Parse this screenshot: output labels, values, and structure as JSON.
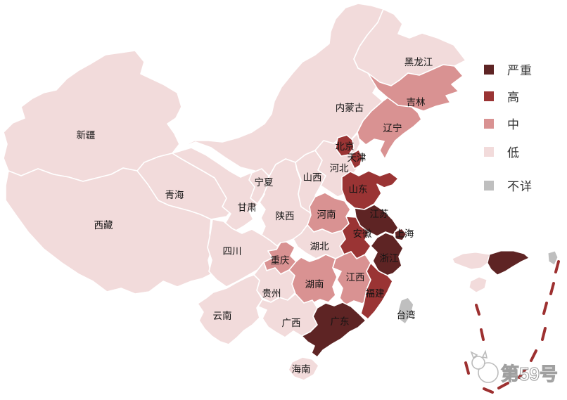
{
  "legend": {
    "items": [
      {
        "key": "severe",
        "label": "严重",
        "color": "#5e2424"
      },
      {
        "key": "high",
        "label": "高",
        "color": "#9a3434"
      },
      {
        "key": "mid",
        "label": "中",
        "color": "#d99292"
      },
      {
        "key": "low",
        "label": "低",
        "color": "#f2dbdb"
      },
      {
        "key": "unknown",
        "label": "不详",
        "color": "#bfbfbf"
      }
    ]
  },
  "map": {
    "provinces": [
      {
        "id": "xinjiang",
        "label": "新疆",
        "level": "low"
      },
      {
        "id": "xizang",
        "label": "西藏",
        "level": "low"
      },
      {
        "id": "qinghai",
        "label": "青海",
        "level": "low"
      },
      {
        "id": "neimenggu",
        "label": "内蒙古",
        "level": "low"
      },
      {
        "id": "gansu",
        "label": "甘肃",
        "level": "low"
      },
      {
        "id": "shaanxi",
        "label": "陕西",
        "level": "low"
      },
      {
        "id": "ningxia",
        "label": "宁夏",
        "level": "low"
      },
      {
        "id": "heilongjiang",
        "label": "黑龙江",
        "level": "low"
      },
      {
        "id": "jilin",
        "label": "吉林",
        "level": "mid"
      },
      {
        "id": "liaoning",
        "label": "辽宁",
        "level": "mid"
      },
      {
        "id": "shanxi",
        "label": "山西",
        "level": "low"
      },
      {
        "id": "hebei",
        "label": "河北",
        "level": "low"
      },
      {
        "id": "beijing",
        "label": "北京",
        "level": "high"
      },
      {
        "id": "tianjin",
        "label": "天津",
        "level": "high"
      },
      {
        "id": "shandong",
        "label": "山东",
        "level": "high"
      },
      {
        "id": "henan",
        "label": "河南",
        "level": "mid"
      },
      {
        "id": "jiangsu",
        "label": "江苏",
        "level": "severe"
      },
      {
        "id": "anhui",
        "label": "安徽",
        "level": "high"
      },
      {
        "id": "shanghai",
        "label": "上海",
        "level": "severe"
      },
      {
        "id": "zhejiang",
        "label": "浙江",
        "level": "severe"
      },
      {
        "id": "hubei",
        "label": "湖北",
        "level": "low"
      },
      {
        "id": "sichuan",
        "label": "四川",
        "level": "low"
      },
      {
        "id": "chongqing",
        "label": "重庆",
        "level": "mid"
      },
      {
        "id": "guizhou",
        "label": "贵州",
        "level": "low"
      },
      {
        "id": "yunnan",
        "label": "云南",
        "level": "low"
      },
      {
        "id": "hunan",
        "label": "湖南",
        "level": "mid"
      },
      {
        "id": "jiangxi",
        "label": "江西",
        "level": "mid"
      },
      {
        "id": "fujian",
        "label": "福建",
        "level": "high"
      },
      {
        "id": "guangxi",
        "label": "广西",
        "level": "low"
      },
      {
        "id": "guangdong",
        "label": "广东",
        "level": "severe"
      },
      {
        "id": "hainan",
        "label": "海南",
        "level": "low"
      },
      {
        "id": "taiwan",
        "label": "台湾",
        "level": "unknown"
      }
    ]
  },
  "watermark": {
    "text": "第59号"
  },
  "colors": {
    "severe": "#5e2424",
    "high": "#9a3434",
    "mid": "#d99292",
    "low": "#f2dbdb",
    "unknown": "#bfbfbf",
    "stroke": "#ffffff",
    "dash": "#9d3030",
    "label": "#141414"
  }
}
